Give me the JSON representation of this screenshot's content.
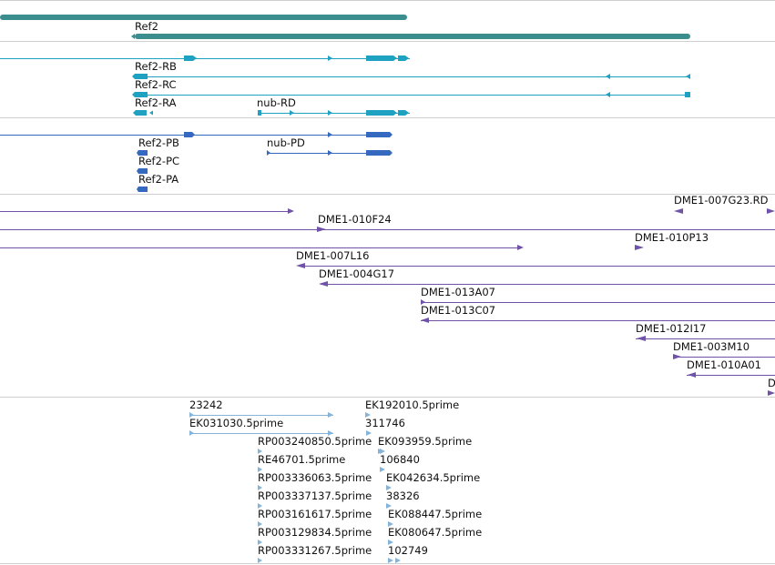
{
  "colors": {
    "gene": "#3a8e8e",
    "transcript": "#1fa2c1",
    "protein": "#3569c0",
    "bac": "#7052a8",
    "est": "#86b4d8",
    "separator": "#cfcfcf"
  },
  "tracks": {
    "gene": {
      "labels": [
        "Ref2"
      ]
    },
    "transcripts": {
      "labels": [
        "Ref2-RB",
        "Ref2-RC",
        "Ref2-RA",
        "nub-RD"
      ]
    },
    "proteins": {
      "labels": [
        "Ref2-PB",
        "Ref2-PC",
        "Ref2-PA",
        "nub-PD"
      ]
    },
    "bac": {
      "labels": [
        "DME1-007G23.RD",
        "DME1-010F24",
        "DME1-010P13",
        "DME1-007L16",
        "DME1-004G17",
        "DME1-013A07",
        "DME1-013C07",
        "DME1-012I17",
        "DME1-003M10",
        "DME1-010A01",
        "D"
      ]
    },
    "est": {
      "labels": [
        "23242",
        "EK031030.5prime",
        "EK192010.5prime",
        "311746",
        "RP003240850.5prime",
        "EK093959.5prime",
        "RE46701.5prime",
        "106840",
        "RP003336063.5prime",
        "EK042634.5prime",
        "RP003337137.5prime",
        "38326",
        "RP003161617.5prime",
        "EK088447.5prime",
        "RP003129834.5prime",
        "EK080647.5prime",
        "RP003331267.5prime",
        "102749"
      ]
    }
  }
}
